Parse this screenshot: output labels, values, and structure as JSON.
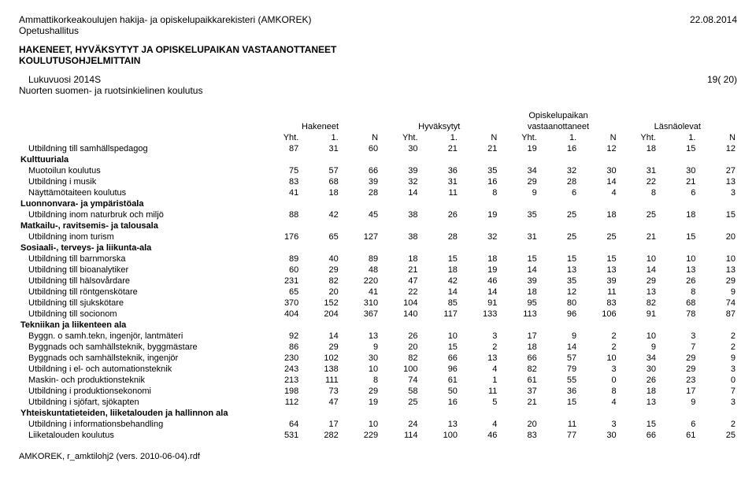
{
  "header": {
    "title": "Ammattikorkeakoulujen hakija- ja opiskelupaikkarekisteri (AMKOREK)",
    "org": "Opetushallitus",
    "date": "22.08.2014",
    "section1": "HAKENEET, HYVÄKSYTYT JA OPISKELUPAIKAN VASTAANOTTANEET",
    "section2": "KOULUTUSOHJELMITTAIN",
    "lukuvuosi": "Lukuvuosi 2014S",
    "page_of": "19( 20)",
    "koulutus": "Nuorten suomen- ja ruotsinkielinen koulutus"
  },
  "col_groups": {
    "g1": "Hakeneet",
    "g2": "Hyväksytyt",
    "g3_a": "Opiskelupaikan",
    "g3_b": "vastaanottaneet",
    "g4": "Läsnäolevat",
    "sub": [
      "Yht.",
      "1.",
      "N",
      "Yht.",
      "1.",
      "N",
      "Yht.",
      "1.",
      "N",
      "Yht.",
      "1.",
      "N"
    ]
  },
  "rows": [
    {
      "type": "data",
      "label": "Utbildning till samhällspedagog",
      "v": [
        87,
        31,
        60,
        30,
        21,
        21,
        19,
        16,
        12,
        18,
        15,
        12
      ]
    },
    {
      "type": "cat",
      "label": "Kulttuuriala"
    },
    {
      "type": "data",
      "label": "Muotoilun koulutus",
      "v": [
        75,
        57,
        66,
        39,
        36,
        35,
        34,
        32,
        30,
        31,
        30,
        27
      ]
    },
    {
      "type": "data",
      "label": "Utbildning i musik",
      "v": [
        83,
        68,
        39,
        32,
        31,
        16,
        29,
        28,
        14,
        22,
        21,
        13
      ]
    },
    {
      "type": "data",
      "label": "Näyttämötaiteen koulutus",
      "v": [
        41,
        18,
        28,
        14,
        11,
        8,
        9,
        6,
        4,
        8,
        6,
        3
      ]
    },
    {
      "type": "cat",
      "label": "Luonnonvara- ja ympäristöala"
    },
    {
      "type": "data",
      "label": "Utbildning inom naturbruk och miljö",
      "v": [
        88,
        42,
        45,
        38,
        26,
        19,
        35,
        25,
        18,
        25,
        18,
        15
      ]
    },
    {
      "type": "cat",
      "label": "Matkailu-, ravitsemis- ja talousala"
    },
    {
      "type": "data",
      "label": "Utbildning inom turism",
      "v": [
        176,
        65,
        127,
        38,
        28,
        32,
        31,
        25,
        25,
        21,
        15,
        20
      ]
    },
    {
      "type": "cat",
      "label": "Sosiaali-, terveys- ja liikunta-ala"
    },
    {
      "type": "data",
      "label": "Utbildning till barnmorska",
      "v": [
        89,
        40,
        89,
        18,
        15,
        18,
        15,
        15,
        15,
        10,
        10,
        10
      ]
    },
    {
      "type": "data",
      "label": "Utbildning till bioanalytiker",
      "v": [
        60,
        29,
        48,
        21,
        18,
        19,
        14,
        13,
        13,
        14,
        13,
        13
      ]
    },
    {
      "type": "data",
      "label": "Utbildning till hälsovårdare",
      "v": [
        231,
        82,
        220,
        47,
        42,
        46,
        39,
        35,
        39,
        29,
        26,
        29
      ]
    },
    {
      "type": "data",
      "label": "Utbildning till röntgenskötare",
      "v": [
        65,
        20,
        41,
        22,
        14,
        14,
        18,
        12,
        11,
        13,
        8,
        9
      ]
    },
    {
      "type": "data",
      "label": "Utbildning till sjukskötare",
      "v": [
        370,
        152,
        310,
        104,
        85,
        91,
        95,
        80,
        83,
        82,
        68,
        74
      ]
    },
    {
      "type": "data",
      "label": "Utbildning till socionom",
      "v": [
        404,
        204,
        367,
        140,
        117,
        133,
        113,
        96,
        106,
        91,
        78,
        87
      ]
    },
    {
      "type": "cat",
      "label": "Tekniikan ja liikenteen ala"
    },
    {
      "type": "data",
      "label": "Byggn. o samh.tekn, ingenjör, lantmäteri",
      "v": [
        92,
        14,
        13,
        26,
        10,
        3,
        17,
        9,
        2,
        10,
        3,
        2
      ]
    },
    {
      "type": "data",
      "label": "Byggnads och samhällsteknik, byggmästare",
      "v": [
        86,
        29,
        9,
        20,
        15,
        2,
        18,
        14,
        2,
        9,
        7,
        2
      ]
    },
    {
      "type": "data",
      "label": "Byggnads och samhällsteknik, ingenjör",
      "v": [
        230,
        102,
        30,
        82,
        66,
        13,
        66,
        57,
        10,
        34,
        29,
        9
      ]
    },
    {
      "type": "data",
      "label": "Utbildning i el- och automationsteknik",
      "v": [
        243,
        138,
        10,
        100,
        96,
        4,
        82,
        79,
        3,
        30,
        29,
        3
      ]
    },
    {
      "type": "data",
      "label": "Maskin- och produktionsteknik",
      "v": [
        213,
        111,
        8,
        74,
        61,
        1,
        61,
        55,
        0,
        26,
        23,
        0
      ]
    },
    {
      "type": "data",
      "label": "Utbildning i produktionsekonomi",
      "v": [
        198,
        73,
        29,
        58,
        50,
        11,
        37,
        36,
        8,
        18,
        17,
        7
      ]
    },
    {
      "type": "data",
      "label": "Utbildning i sjöfart, sjökapten",
      "v": [
        112,
        47,
        19,
        25,
        16,
        5,
        21,
        15,
        4,
        13,
        9,
        3
      ]
    },
    {
      "type": "cat",
      "label": "Yhteiskuntatieteiden, liiketalouden ja hallinnon ala"
    },
    {
      "type": "data",
      "label": "Utbildning i informationsbehandling",
      "v": [
        64,
        17,
        10,
        24,
        13,
        4,
        20,
        11,
        3,
        15,
        6,
        2
      ]
    },
    {
      "type": "data",
      "label": "Liiketalouden koulutus",
      "v": [
        531,
        282,
        229,
        114,
        100,
        46,
        83,
        77,
        30,
        66,
        61,
        25
      ]
    }
  ],
  "footer": "AMKOREK, r_amktilohj2 (vers. 2010-06-04).rdf"
}
